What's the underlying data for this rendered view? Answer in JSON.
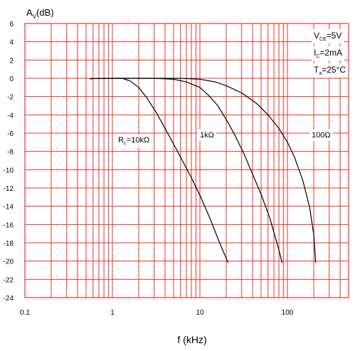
{
  "chart_data": {
    "type": "line",
    "xscale": "log",
    "xlim": [
      0.1,
      500
    ],
    "ylim": [
      -24,
      6
    ],
    "grid": true,
    "grid_color": "#e8322e",
    "line_color": "#000000",
    "xlabel": "f (kHz)",
    "ylabel": {
      "main": "A",
      "sub": "V",
      "unit": "(dB)"
    },
    "y_ticks": [
      6,
      4,
      2,
      0,
      -2,
      -4,
      -6,
      -8,
      -10,
      -12,
      -14,
      -16,
      -18,
      -20,
      -22,
      -24
    ],
    "y_tick_labels": [
      "6",
      "4",
      "2",
      "0",
      "-2",
      "-4",
      "-6",
      "-8",
      "-10",
      "-12",
      "-14",
      "-16",
      "-18",
      "-20",
      "-22",
      "-24"
    ],
    "x_ticks": [
      0.1,
      1,
      10,
      100
    ],
    "x_tick_labels": [
      "0.1",
      "1",
      "10",
      "100"
    ],
    "conditions": [
      {
        "main": "V",
        "sub": "CE",
        "rest": "=5V"
      },
      {
        "main": "I",
        "sub": "C",
        "rest": "=2mA"
      },
      {
        "main": "T",
        "sub": "a",
        "rest": "=25°C"
      }
    ],
    "series": [
      {
        "name": "R_L=10kΩ",
        "label": {
          "main": "R",
          "sub": "L",
          "rest": "=10kΩ"
        },
        "x": [
          0.55,
          0.8,
          1.0,
          1.3,
          1.6,
          2.0,
          2.5,
          3.2,
          4.0,
          5.0,
          6.3,
          8.0,
          10.0,
          13.0,
          16.0,
          21.0
        ],
        "y": [
          -0.05,
          0.0,
          0.0,
          0.0,
          -0.3,
          -1.0,
          -2.2,
          -3.8,
          -5.5,
          -7.2,
          -9.0,
          -10.9,
          -12.8,
          -15.3,
          -17.5,
          -20.2
        ]
      },
      {
        "name": "1kΩ",
        "label": {
          "main": "1kΩ",
          "sub": "",
          "rest": ""
        },
        "x": [
          0.55,
          1.0,
          2.0,
          3.0,
          5.0,
          7.0,
          10.0,
          13.0,
          16.0,
          20.0,
          25.0,
          32.0,
          40.0,
          50.0,
          63.0,
          80.0,
          87.0
        ],
        "y": [
          -0.05,
          0.0,
          0.0,
          0.0,
          -0.1,
          -0.4,
          -1.0,
          -2.0,
          -3.0,
          -4.5,
          -6.2,
          -8.3,
          -10.5,
          -12.7,
          -15.3,
          -18.8,
          -20.2
        ]
      },
      {
        "name": "100Ω",
        "label": {
          "main": "100Ω",
          "sub": "",
          "rest": ""
        },
        "x": [
          0.55,
          1.0,
          3.0,
          6.0,
          10.0,
          15.0,
          20.0,
          30.0,
          45.0,
          60.0,
          80.0,
          100.0,
          120.0,
          150.0,
          180.0,
          200.0,
          210.0
        ],
        "y": [
          -0.05,
          0.0,
          0.0,
          0.0,
          -0.1,
          -0.4,
          -0.8,
          -1.6,
          -2.8,
          -4.0,
          -5.5,
          -7.0,
          -8.6,
          -11.2,
          -14.2,
          -17.2,
          -20.2
        ]
      }
    ]
  }
}
